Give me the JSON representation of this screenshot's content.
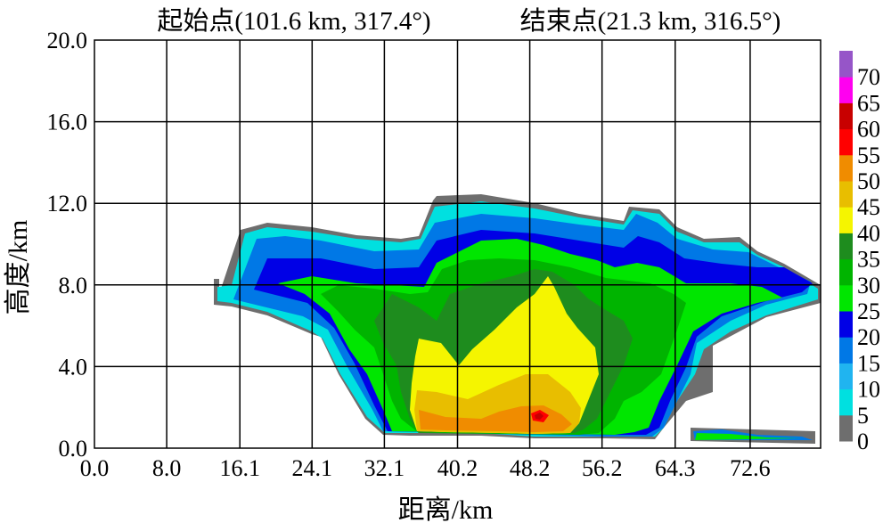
{
  "chart_data": {
    "type": "heatmap",
    "title_left": "起始点(101.6 km, 317.4°)",
    "title_right": "结束点(21.3 km, 316.5°)",
    "xlabel": "距离/km",
    "ylabel": "高度/km",
    "x_ticks": [
      "0.0",
      "8.0",
      "16.1",
      "24.1",
      "32.1",
      "40.2",
      "48.2",
      "56.2",
      "64.3",
      "72.6"
    ],
    "y_ticks": [
      "0.0",
      "4.0",
      "8.0",
      "12.0",
      "16.0",
      "20.0"
    ],
    "xlim": [
      0,
      80.4
    ],
    "ylim": [
      0,
      20
    ],
    "grid": true,
    "legend": {
      "placement": "right",
      "levels": [
        0,
        5,
        10,
        15,
        20,
        25,
        30,
        35,
        40,
        45,
        50,
        55,
        60,
        65,
        70
      ],
      "labels": [
        "0",
        "5",
        "10",
        "15",
        "20",
        "25",
        "30",
        "35",
        "40",
        "45",
        "50",
        "55",
        "60",
        "65",
        "70"
      ],
      "colors": [
        "#6e6e6e",
        "#00e0e0",
        "#20b4f0",
        "#0078e6",
        "#0000e6",
        "#00e600",
        "#00b400",
        "#1e8c1e",
        "#f5f500",
        "#e8be00",
        "#f08c00",
        "#ff0000",
        "#c80000",
        "#ff00f0",
        "#9655c8"
      ]
    }
  }
}
